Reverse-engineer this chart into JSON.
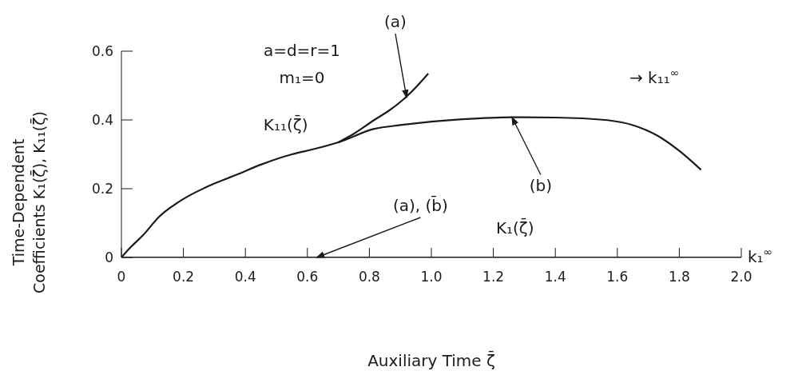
{
  "chart_data": {
    "type": "line",
    "xlabel": "Auxiliary Time ζ̄",
    "ylabel": "Time-Dependent\nCoefficients K₁(ζ̄), K₁₁(ζ̄)",
    "xlim": [
      0,
      2
    ],
    "ylim": [
      0,
      0.6
    ],
    "xticks": [
      0,
      0.2,
      0.4,
      0.6,
      0.8,
      {
        "value": 1,
        "label": "1.0"
      },
      1.2,
      1.4,
      1.6,
      1.8,
      {
        "value": 2,
        "label": "2.0"
      }
    ],
    "yticks": [
      0,
      0.2,
      0.4,
      0.6
    ],
    "grid": false,
    "legend": false,
    "marker": "none",
    "line_style": "solid",
    "series": [
      {
        "color": "#1a1a1a",
        "x": [
          0,
          0.03,
          0.07,
          0.12,
          0.2,
          0.3,
          0.37,
          0.45,
          0.55,
          0.62,
          0.7,
          0.816,
          0.9,
          1.0,
          1.1,
          1.26,
          1.4,
          1.56,
          1.65,
          1.73,
          1.8,
          1.87
        ],
        "values": [
          0,
          0.03,
          0.065,
          0.117,
          0.17,
          0.215,
          0.24,
          0.27,
          0.3,
          0.315,
          0.335,
          0.374,
          0.385,
          0.395,
          0.402,
          0.408,
          0.407,
          0.4,
          0.385,
          0.354,
          0.31,
          0.255
        ]
      },
      {
        "color": "#1a1a1a",
        "x": [
          0.7,
          0.75,
          0.816,
          0.86,
          0.91,
          0.95,
          0.99
        ],
        "values": [
          0.335,
          0.36,
          0.4,
          0.425,
          0.46,
          0.495,
          0.535
        ]
      },
      {
        "color": "#1a1a1a",
        "x": [
          0,
          0.5,
          1,
          1.5,
          2
        ],
        "values": [
          0,
          0,
          0,
          0,
          0
        ]
      }
    ],
    "annotations": [
      "a=d=r=1",
      "m₁=0",
      "→ k₁₁$^{∞}$",
      "k₁$^{∞}$",
      "K₁₁(ζ̄)",
      "K₁(ζ̄)",
      {
        "text": "(a)",
        "x": 0.92,
        "y": 0.465
      },
      {
        "text": "(b)",
        "x": 1.26,
        "y": 0.408
      },
      {
        "text": "(a), (b̄)",
        "x": 0.63,
        "y": 0
      }
    ]
  }
}
